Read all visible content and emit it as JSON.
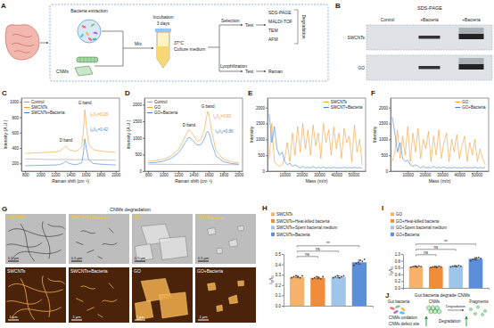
{
  "panel_a": {
    "label": "A",
    "bacteria_extraction": "Bacteria extraction",
    "cnms": "CNMs",
    "mix": "Mix",
    "incubation": "Incubation",
    "duration": "3 days",
    "temperature": "37°C",
    "medium": "Culture medium",
    "selection": "Selection",
    "test_1": "Test",
    "methods": [
      "SDS-PAGE",
      "MALDI-TOF",
      "TEM",
      "AFM"
    ],
    "degradation": "Degradation",
    "lyophilization": "Lyophilization",
    "test_2": "Test",
    "raman": "Raman"
  },
  "panel_b": {
    "label": "B",
    "title": "SDS-PAGE",
    "columns": [
      "Control",
      "+Bacteria",
      "+Bacteria"
    ],
    "rows": [
      "SWCNTs",
      "GO"
    ]
  },
  "chart_data": [
    {
      "type": "line",
      "label": "C",
      "x_label": "Raman shift (cm⁻¹)",
      "y_label": "Intensity (A.U.)",
      "legend": "top-left",
      "x": [
        800,
        900,
        1000,
        1100,
        1200,
        1250,
        1300,
        1340,
        1380,
        1450,
        1500,
        1550,
        1570,
        1590,
        1610,
        1640,
        1700,
        1800,
        1900,
        2000
      ],
      "series": [
        {
          "name": "Control",
          "color": "#9e9e9e",
          "values": [
            260,
            258,
            255,
            252,
            250,
            250,
            250,
            252,
            250,
            248,
            248,
            250,
            250,
            250,
            250,
            248,
            246,
            245,
            244,
            242
          ]
        },
        {
          "name": "SWCNTs",
          "color": "#f39c34",
          "values": [
            330,
            335,
            340,
            345,
            350,
            360,
            390,
            430,
            380,
            360,
            370,
            420,
            600,
            900,
            700,
            450,
            380,
            360,
            350,
            345
          ]
        },
        {
          "name": "SWCNTs+Bacteria",
          "color": "#3d7fd9",
          "values": [
            170,
            172,
            175,
            178,
            180,
            185,
            200,
            230,
            200,
            185,
            190,
            210,
            320,
            520,
            400,
            250,
            200,
            190,
            185,
            180
          ]
        }
      ],
      "xlim": [
        750,
        2050
      ],
      "xticks": [
        800,
        1000,
        1200,
        1400,
        1600,
        1800,
        2000
      ],
      "ylim": [
        100,
        1050
      ],
      "yticks": [
        200,
        400,
        600,
        800,
        1000
      ],
      "annotations": [
        {
          "text": "D band",
          "x": 1340,
          "y": 480
        },
        {
          "text": "G band",
          "x": 1590,
          "y": 970
        },
        {
          "text": "ID/IG=0.28",
          "x": 1660,
          "y": 820,
          "color": "#f39c34"
        },
        {
          "text": "ID/IG=0.42",
          "x": 1660,
          "y": 620,
          "color": "#3d7fd9"
        }
      ]
    },
    {
      "type": "line",
      "label": "D",
      "x_label": "Raman shift (cm⁻¹)",
      "y_label": "Intensity (A.U.)",
      "legend": "top-left",
      "x": [
        800,
        900,
        1000,
        1100,
        1200,
        1250,
        1300,
        1340,
        1380,
        1450,
        1500,
        1550,
        1570,
        1590,
        1610,
        1640,
        1700,
        1800,
        1900,
        2000
      ],
      "series": [
        {
          "name": "Control",
          "color": "#9e9e9e",
          "values": [
            210,
            208,
            205,
            205,
            203,
            203,
            202,
            202,
            202,
            200,
            200,
            200,
            200,
            200,
            200,
            198,
            198,
            196,
            195,
            195
          ]
        },
        {
          "name": "GO",
          "color": "#f39c34",
          "values": [
            300,
            320,
            360,
            450,
            650,
            850,
            1100,
            1250,
            1150,
            900,
            950,
            1300,
            1600,
            1800,
            1650,
            1200,
            600,
            350,
            280,
            250
          ]
        },
        {
          "name": "GO+Bacteria",
          "color": "#3d7fd9",
          "values": [
            250,
            260,
            300,
            380,
            550,
            700,
            900,
            1020,
            950,
            780,
            800,
            1000,
            1150,
            1200,
            1120,
            850,
            450,
            280,
            230,
            210
          ]
        }
      ],
      "xlim": [
        750,
        2050
      ],
      "xticks": [
        800,
        1000,
        1200,
        1400,
        1600,
        1800,
        2000
      ],
      "ylim": [
        0,
        2200
      ],
      "yticks": [
        0,
        500,
        1000,
        1500,
        2000
      ],
      "annotations": [
        {
          "text": "D band",
          "x": 1340,
          "y": 1350
        },
        {
          "text": "G band",
          "x": 1590,
          "y": 1900
        },
        {
          "text": "ID/IG=0.63",
          "x": 1660,
          "y": 1600,
          "color": "#f39c34"
        },
        {
          "text": "ID/IG=0.86",
          "x": 1690,
          "y": 1150,
          "color": "#3d7fd9"
        }
      ]
    },
    {
      "type": "line",
      "label": "E",
      "x_label": "Mass (m/z)",
      "y_label": "Intensity",
      "legend": "top-right",
      "x": [
        1000,
        2500,
        4000,
        5500,
        7000,
        8500,
        10000,
        11500,
        13000,
        14500,
        16000,
        17500,
        19000,
        20500,
        22000,
        23500,
        25000,
        26500,
        28000,
        29500,
        31000,
        32500,
        34000,
        35500,
        37000,
        38500,
        40000,
        41500,
        43000,
        44500,
        46000,
        47500,
        49000,
        50500,
        52000,
        53500,
        55000
      ],
      "series": [
        {
          "name": "SWCNTs",
          "color": "#f39c34",
          "values": [
            400,
            1500,
            300,
            200,
            150,
            200,
            400,
            900,
            300,
            1200,
            500,
            1400,
            600,
            1500,
            700,
            1300,
            500,
            1450,
            800,
            1200,
            400,
            1500,
            900,
            1300,
            500,
            1400,
            700,
            1200,
            400,
            1350,
            900,
            1100,
            300,
            1450,
            600,
            1000,
            200
          ]
        },
        {
          "name": "SWCNT+Bacteria",
          "color": "#3d7fd9",
          "values": [
            1800,
            900,
            1400,
            700,
            500,
            600,
            300,
            200,
            250,
            150,
            200,
            150,
            100,
            150,
            100,
            120,
            100,
            150,
            100,
            120,
            100,
            130,
            100,
            110,
            100,
            120,
            100,
            110,
            100,
            120,
            100,
            110,
            100,
            120,
            100,
            110,
            100
          ]
        }
      ],
      "xlim": [
        0,
        57000
      ],
      "xticks": [
        10000,
        20000,
        30000,
        40000,
        50000
      ],
      "ylim": [
        0,
        2300
      ],
      "yticks": [
        0,
        500,
        1000,
        1500,
        2000
      ]
    },
    {
      "type": "line",
      "label": "F",
      "x_label": "Mass (m/z)",
      "y_label": "Intensity",
      "legend": "top-right",
      "x": [
        1000,
        2500,
        4000,
        5500,
        7000,
        8500,
        10000,
        11500,
        13000,
        14500,
        16000,
        17500,
        19000,
        20500,
        22000,
        23500,
        25000,
        26500,
        28000,
        29500,
        31000,
        32500,
        34000,
        35500,
        37000,
        38500,
        40000,
        41500,
        43000,
        44500,
        46000,
        47500,
        49000,
        50500,
        52000,
        53500,
        55000
      ],
      "series": [
        {
          "name": "GO",
          "color": "#f39c34",
          "values": [
            300,
            600,
            1300,
            400,
            1100,
            500,
            1400,
            300,
            1200,
            600,
            1350,
            400,
            1000,
            700,
            1250,
            300,
            1100,
            500,
            1300,
            400,
            900,
            1200,
            300,
            1000,
            600,
            1150,
            400,
            800,
            1100,
            300,
            900,
            500,
            1000,
            300,
            700,
            400,
            200
          ]
        },
        {
          "name": "GO+Bacteria",
          "color": "#3d7fd9",
          "values": [
            1700,
            1200,
            600,
            900,
            400,
            300,
            350,
            200,
            150,
            200,
            150,
            100,
            150,
            100,
            120,
            100,
            150,
            100,
            120,
            100,
            130,
            100,
            110,
            100,
            120,
            100,
            110,
            100,
            120,
            100,
            110,
            100,
            120,
            100,
            110,
            100,
            120
          ]
        }
      ],
      "xlim": [
        0,
        57000
      ],
      "xticks": [
        10000,
        20000,
        30000,
        40000,
        50000
      ],
      "ylim": [
        0,
        2300
      ],
      "yticks": [
        0,
        500,
        1000,
        1500,
        2000
      ]
    },
    {
      "type": "bar",
      "label": "H",
      "y_label": "ID/IG",
      "legend": "top",
      "tick_labels": "y",
      "categories": [
        "SWCNTs",
        "SWCNTs+Heat-killed bacteria",
        "SWCNTs+Spent bacterial medium",
        "SWCNTs+Bacteria"
      ],
      "values": [
        0.28,
        0.27,
        0.28,
        0.42
      ],
      "errors": [
        0.01,
        0.01,
        0.01,
        0.02
      ],
      "points": [
        [
          0.27,
          0.28,
          0.29,
          0.28,
          0.27,
          0.29
        ],
        [
          0.26,
          0.27,
          0.28,
          0.27,
          0.26,
          0.28
        ],
        [
          0.27,
          0.28,
          0.29,
          0.27,
          0.28,
          0.29
        ],
        [
          0.39,
          0.41,
          0.42,
          0.44,
          0.43,
          0.45
        ]
      ],
      "colors": [
        "#f6b26b",
        "#f08c3a",
        "#9fc5e8",
        "#5b8fd9"
      ],
      "ylim": [
        0,
        0.5
      ],
      "yticks": [
        {
          "value": 0,
          "label": "0.0"
        },
        0.1,
        0.2,
        0.3,
        0.4,
        0.5
      ],
      "comparisons": [
        {
          "from": "SWCNTs",
          "to": "SWCNTs+Heat-killed bacteria",
          "label": "ns"
        },
        {
          "from": "SWCNTs",
          "to": "SWCNTs+Spent bacterial medium",
          "label": "ns"
        },
        {
          "from": "SWCNTs",
          "to": "SWCNTs+Bacteria",
          "label": "**"
        }
      ]
    },
    {
      "type": "bar",
      "label": "I",
      "y_label": "ID/IG",
      "legend": "top",
      "tick_labels": "y",
      "categories": [
        "GO",
        "GO+Heat-killed bacteria",
        "GO+Spent bacterial medium",
        "GO+Bacteria"
      ],
      "values": [
        0.63,
        0.62,
        0.64,
        0.86
      ],
      "errors": [
        0.02,
        0.02,
        0.02,
        0.04
      ],
      "points": [
        [
          0.61,
          0.63,
          0.64,
          0.62,
          0.65,
          0.63
        ],
        [
          0.6,
          0.62,
          0.63,
          0.61,
          0.64,
          0.62
        ],
        [
          0.62,
          0.64,
          0.65,
          0.63,
          0.66,
          0.64
        ],
        [
          0.8,
          0.84,
          0.86,
          0.88,
          0.9,
          0.87
        ]
      ],
      "colors": [
        "#f6b26b",
        "#f08c3a",
        "#9fc5e8",
        "#5b8fd9"
      ],
      "ylim": [
        0,
        1
      ],
      "yticks": [
        {
          "value": 0,
          "label": "0.0"
        },
        0.2,
        0.4,
        0.6,
        0.8,
        {
          "value": 1,
          "label": "1.0"
        }
      ],
      "comparisons": [
        {
          "from": "GO",
          "to": "GO+Heat-killed bacteria",
          "label": "ns"
        },
        {
          "from": "GO",
          "to": "GO+Spent bacterial medium",
          "label": "ns"
        },
        {
          "from": "GO",
          "to": "GO+Bacteria",
          "label": "**"
        }
      ]
    }
  ],
  "panel_g": {
    "label": "G",
    "title": "CNMs degradation",
    "tem": [
      {
        "label": "SWCNTs",
        "scale_bar": "0.5 μm"
      },
      {
        "label": "SWCNTs+Bacteria",
        "scale_bar": "0.5 μm"
      },
      {
        "label": "GO",
        "scale_bar": "0.5 μm"
      },
      {
        "label": "GO+Bacteria",
        "scale_bar": "0.5 μm"
      }
    ],
    "afm": [
      {
        "label": "SWCNTs",
        "scale_bar": "1 μm"
      },
      {
        "label": "SWCNTs+Bacteria",
        "scale_bar": "1 μm"
      },
      {
        "label": "GO",
        "scale_bar": "1 μm"
      },
      {
        "label": "GO+Bacteria",
        "scale_bar": "1 μm"
      }
    ]
  },
  "panel_j": {
    "label": "J",
    "title": "Gut bacteria degrade CNMs",
    "gut_bacteria": "Gut bacteria",
    "cnms": "CNMs",
    "fragments": "Fragments",
    "process": "Degradation",
    "effects": [
      "CNMs oxidation",
      "CNMs defect site"
    ],
    "outcome": "Degradation"
  }
}
